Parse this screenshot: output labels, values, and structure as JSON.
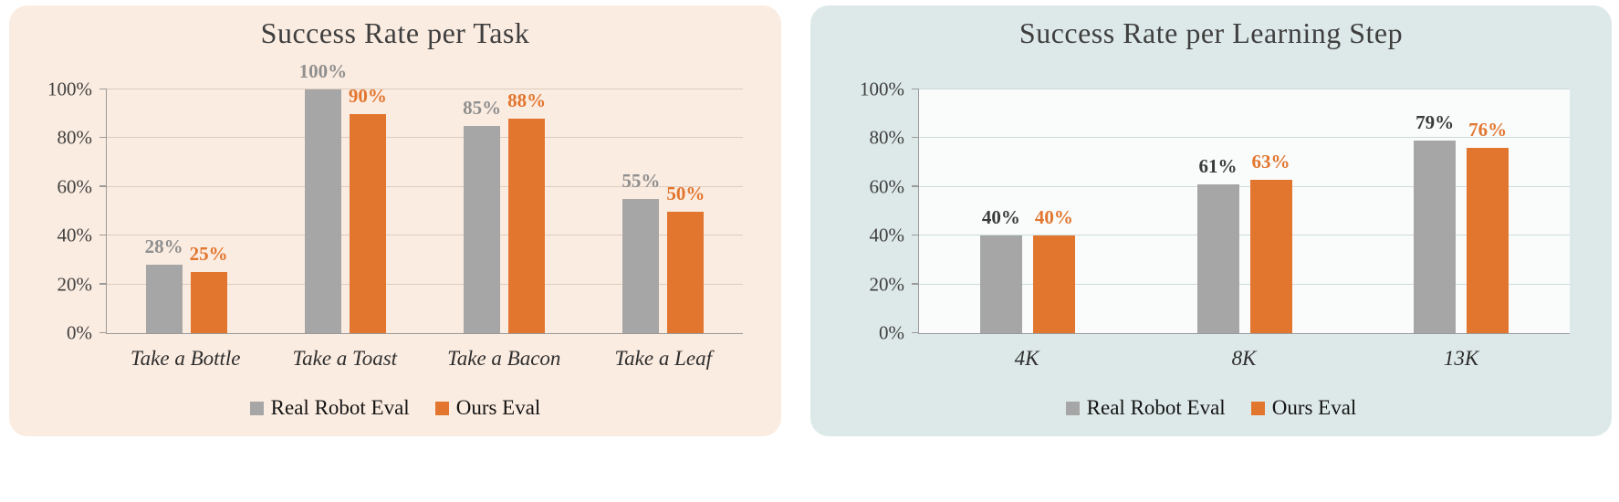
{
  "page": {
    "background": "#ffffff"
  },
  "chart_data": [
    {
      "type": "bar",
      "title": "Success Rate per Task",
      "panel_bg": "#fbece1",
      "plot_bg": "transparent",
      "grid_color": "#ddccbf",
      "axis_color": "#9a9a9a",
      "categories": [
        "Take a Bottle",
        "Take a Toast",
        "Take a Bacon",
        "Take a Leaf"
      ],
      "series": [
        {
          "name": "Real Robot Eval",
          "color": "#a6a6a6",
          "label_color": "#8f8f8f",
          "values": [
            28,
            100,
            85,
            55
          ]
        },
        {
          "name": "Ours Eval",
          "color": "#e2762f",
          "label_color": "#e2762f",
          "values": [
            25,
            90,
            88,
            50
          ]
        }
      ],
      "ylim": [
        0,
        100
      ],
      "yticks": [
        "0%",
        "20%",
        "40%",
        "60%",
        "80%",
        "100%"
      ],
      "value_suffix": "%",
      "legend_position": "bottom",
      "grid": true
    },
    {
      "type": "bar",
      "title": "Success Rate per Learning Step",
      "panel_bg": "#dde9e8",
      "plot_bg": "rgba(255,255,255,0.85)",
      "grid_color": "#ccdbda",
      "axis_color": "#9a9a9a",
      "categories": [
        "4K",
        "8K",
        "13K"
      ],
      "series": [
        {
          "name": "Real Robot Eval",
          "color": "#a6a6a6",
          "label_color": "#3b3b3b",
          "values": [
            40,
            61,
            79
          ]
        },
        {
          "name": "Ours Eval",
          "color": "#e2762f",
          "label_color": "#e2762f",
          "values": [
            40,
            63,
            76
          ]
        }
      ],
      "ylim": [
        0,
        100
      ],
      "yticks": [
        "0%",
        "20%",
        "40%",
        "60%",
        "80%",
        "100%"
      ],
      "value_suffix": "%",
      "legend_position": "bottom",
      "grid": true
    }
  ]
}
